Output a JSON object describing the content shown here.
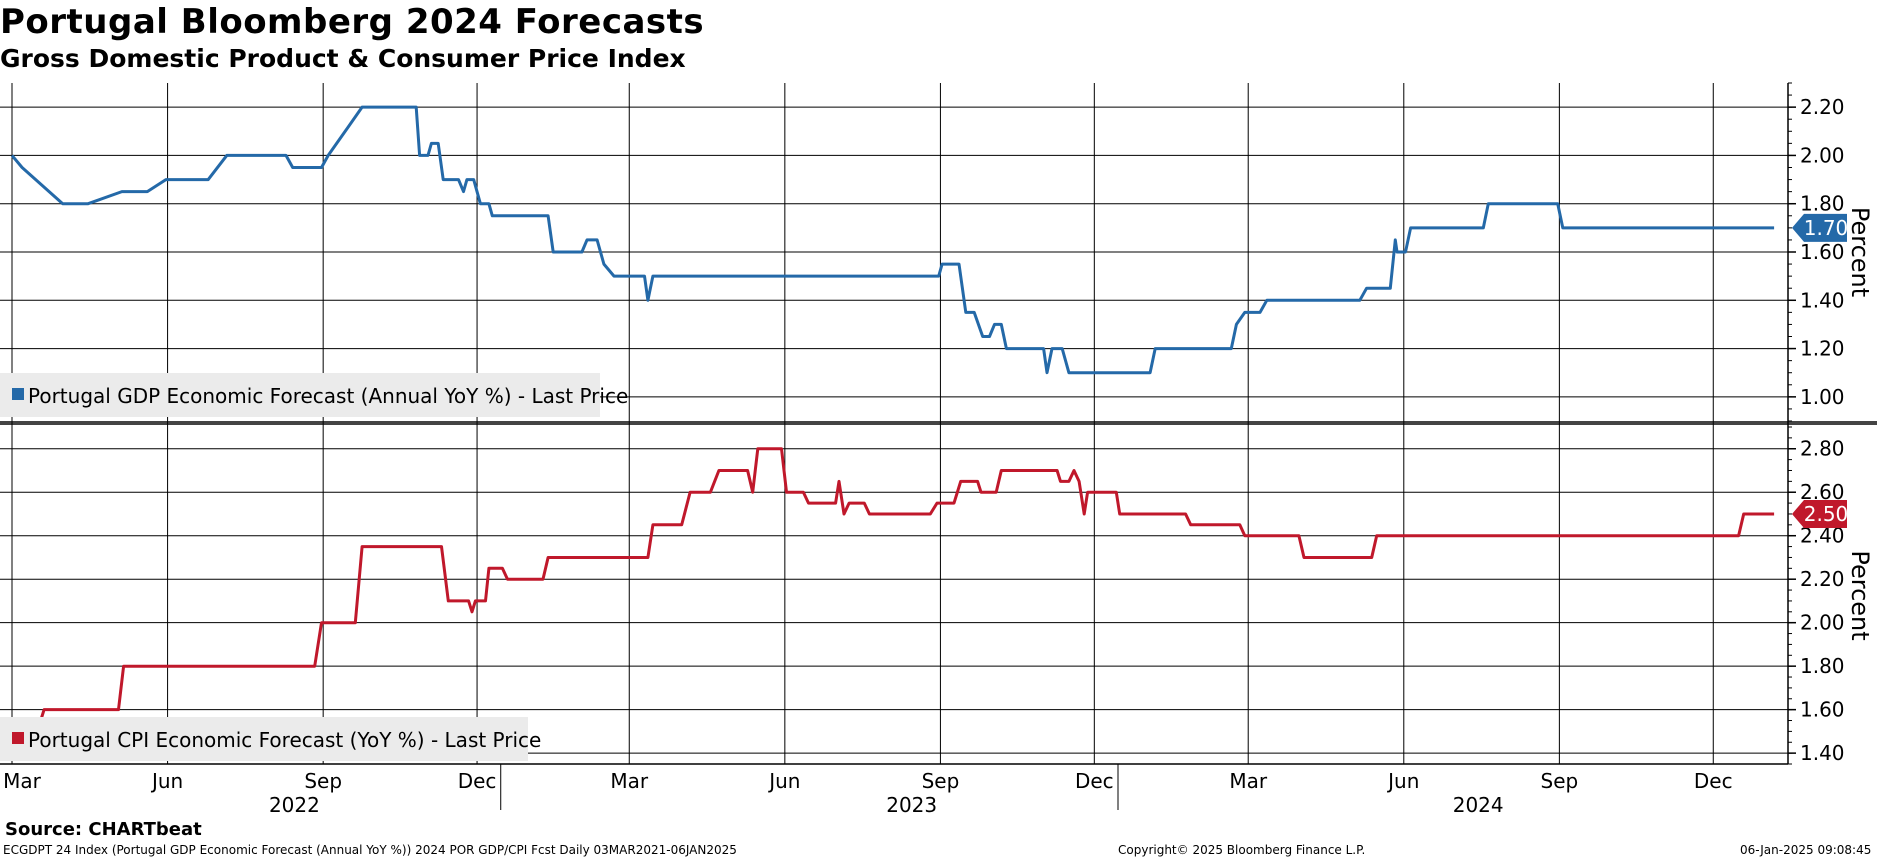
{
  "title": "Portugal Bloomberg 2024 Forecasts",
  "subtitle": "Gross Domestic Product & Consumer Price Index",
  "source": "Source: CHARTbeat",
  "footer": {
    "left": "ECGDPT 24 Index (Portugal GDP Economic Forecast (Annual YoY %)) 2024 POR GDP/CPI Fcst  Daily 03MAR2021-06JAN2025",
    "center": "Copyright© 2025 Bloomberg Finance L.P.",
    "right": "06-Jan-2025 09:08:45"
  },
  "colors": {
    "gdp": "#2469a8",
    "cpi": "#c0182b",
    "grid": "#000000",
    "legend_bg": "#ebebeb"
  },
  "chart_data": [
    {
      "type": "line",
      "name": "gdp-panel",
      "x_axis": {
        "month_labels": [
          "Mar",
          "Jun",
          "Sep",
          "Dec",
          "Mar",
          "Jun",
          "Sep",
          "Dec",
          "Mar",
          "Jun",
          "Sep",
          "Dec"
        ],
        "month_values": [
          "2022-03",
          "2022-06",
          "2022-09",
          "2022-12",
          "2023-03",
          "2023-06",
          "2023-09",
          "2023-12",
          "2024-03",
          "2024-06",
          "2024-09",
          "2024-12"
        ],
        "year_labels": [
          "2022",
          "2023",
          "2024"
        ],
        "range": [
          "2022-03-01",
          "2025-01-06"
        ]
      },
      "ylabel": "Percent",
      "ylim": [
        0.9,
        2.3
      ],
      "yticks": [
        "1.00",
        "1.20",
        "1.40",
        "1.60",
        "1.80",
        "2.00",
        "2.20"
      ],
      "last_value": "1.70",
      "series": [
        {
          "name": "Portugal GDP Economic Forecast (Annual YoY %) - Last Price",
          "points": [
            [
              "2022-03-01",
              2.0
            ],
            [
              "2022-03-07",
              1.95
            ],
            [
              "2022-03-31",
              1.8
            ],
            [
              "2022-04-15",
              1.8
            ],
            [
              "2022-05-05",
              1.85
            ],
            [
              "2022-05-20",
              1.85
            ],
            [
              "2022-05-31",
              1.9
            ],
            [
              "2022-06-25",
              1.9
            ],
            [
              "2022-07-06",
              2.0
            ],
            [
              "2022-08-10",
              2.0
            ],
            [
              "2022-08-14",
              1.95
            ],
            [
              "2022-08-31",
              1.95
            ],
            [
              "2022-09-04",
              2.0
            ],
            [
              "2022-09-14",
              2.1
            ],
            [
              "2022-09-24",
              2.2
            ],
            [
              "2022-10-16",
              2.2
            ],
            [
              "2022-10-26",
              2.2
            ],
            [
              "2022-10-28",
              2.0
            ],
            [
              "2022-11-02",
              2.0
            ],
            [
              "2022-11-04",
              2.05
            ],
            [
              "2022-11-08",
              2.05
            ],
            [
              "2022-11-11",
              1.9
            ],
            [
              "2022-11-20",
              1.9
            ],
            [
              "2022-11-23",
              1.85
            ],
            [
              "2022-11-25",
              1.9
            ],
            [
              "2022-11-29",
              1.9
            ],
            [
              "2022-12-03",
              1.8
            ],
            [
              "2022-12-08",
              1.8
            ],
            [
              "2022-12-10",
              1.75
            ],
            [
              "2023-01-12",
              1.75
            ],
            [
              "2023-01-15",
              1.6
            ],
            [
              "2023-02-01",
              1.6
            ],
            [
              "2023-02-04",
              1.65
            ],
            [
              "2023-02-10",
              1.65
            ],
            [
              "2023-02-14",
              1.55
            ],
            [
              "2023-02-20",
              1.5
            ],
            [
              "2023-03-10",
              1.5
            ],
            [
              "2023-03-12",
              1.4
            ],
            [
              "2023-03-15",
              1.5
            ],
            [
              "2023-08-31",
              1.5
            ],
            [
              "2023-09-02",
              1.55
            ],
            [
              "2023-09-12",
              1.55
            ],
            [
              "2023-09-16",
              1.35
            ],
            [
              "2023-09-21",
              1.35
            ],
            [
              "2023-09-26",
              1.25
            ],
            [
              "2023-09-30",
              1.25
            ],
            [
              "2023-10-03",
              1.3
            ],
            [
              "2023-10-07",
              1.3
            ],
            [
              "2023-10-10",
              1.2
            ],
            [
              "2023-11-01",
              1.2
            ],
            [
              "2023-11-03",
              1.1
            ],
            [
              "2023-11-06",
              1.2
            ],
            [
              "2023-11-12",
              1.2
            ],
            [
              "2023-11-16",
              1.1
            ],
            [
              "2024-01-03",
              1.1
            ],
            [
              "2024-01-06",
              1.2
            ],
            [
              "2024-02-20",
              1.2
            ],
            [
              "2024-02-23",
              1.3
            ],
            [
              "2024-02-28",
              1.35
            ],
            [
              "2024-03-08",
              1.35
            ],
            [
              "2024-03-12",
              1.4
            ],
            [
              "2024-05-06",
              1.4
            ],
            [
              "2024-05-10",
              1.45
            ],
            [
              "2024-05-24",
              1.45
            ],
            [
              "2024-05-27",
              1.65
            ],
            [
              "2024-05-28",
              1.6
            ],
            [
              "2024-06-02",
              1.6
            ],
            [
              "2024-06-05",
              1.7
            ],
            [
              "2024-07-18",
              1.7
            ],
            [
              "2024-07-21",
              1.8
            ],
            [
              "2024-08-31",
              1.8
            ],
            [
              "2024-09-03",
              1.7
            ],
            [
              "2025-01-06",
              1.7
            ]
          ]
        }
      ]
    },
    {
      "type": "line",
      "name": "cpi-panel",
      "ylabel": "Percent",
      "ylim": [
        1.35,
        2.9
      ],
      "yticks": [
        "1.40",
        "1.60",
        "1.80",
        "2.00",
        "2.20",
        "2.40",
        "2.60",
        "2.80"
      ],
      "last_value": "2.50",
      "series": [
        {
          "name": "Portugal CPI Economic Forecast (YoY %) - Last Price",
          "points": [
            [
              "2022-03-01",
              1.55
            ],
            [
              "2022-03-18",
              1.55
            ],
            [
              "2022-03-20",
              1.6
            ],
            [
              "2022-05-03",
              1.6
            ],
            [
              "2022-05-06",
              1.8
            ],
            [
              "2022-08-27",
              1.8
            ],
            [
              "2022-08-31",
              2.0
            ],
            [
              "2022-09-20",
              2.0
            ],
            [
              "2022-09-24",
              2.35
            ],
            [
              "2022-11-10",
              2.35
            ],
            [
              "2022-11-14",
              2.1
            ],
            [
              "2022-11-26",
              2.1
            ],
            [
              "2022-11-28",
              2.05
            ],
            [
              "2022-11-30",
              2.1
            ],
            [
              "2022-12-06",
              2.1
            ],
            [
              "2022-12-08",
              2.25
            ],
            [
              "2022-12-16",
              2.25
            ],
            [
              "2022-12-19",
              2.2
            ],
            [
              "2023-01-09",
              2.2
            ],
            [
              "2023-01-12",
              2.3
            ],
            [
              "2023-03-12",
              2.3
            ],
            [
              "2023-03-15",
              2.45
            ],
            [
              "2023-04-01",
              2.45
            ],
            [
              "2023-04-06",
              2.6
            ],
            [
              "2023-04-18",
              2.6
            ],
            [
              "2023-04-23",
              2.7
            ],
            [
              "2023-05-10",
              2.7
            ],
            [
              "2023-05-13",
              2.6
            ],
            [
              "2023-05-16",
              2.8
            ],
            [
              "2023-05-30",
              2.8
            ],
            [
              "2023-06-02",
              2.6
            ],
            [
              "2023-06-12",
              2.6
            ],
            [
              "2023-06-15",
              2.55
            ],
            [
              "2023-07-01",
              2.55
            ],
            [
              "2023-07-03",
              2.65
            ],
            [
              "2023-07-06",
              2.5
            ],
            [
              "2023-07-09",
              2.55
            ],
            [
              "2023-07-18",
              2.55
            ],
            [
              "2023-07-21",
              2.5
            ],
            [
              "2023-08-26",
              2.5
            ],
            [
              "2023-08-30",
              2.55
            ],
            [
              "2023-09-09",
              2.55
            ],
            [
              "2023-09-13",
              2.65
            ],
            [
              "2023-09-23",
              2.65
            ],
            [
              "2023-09-25",
              2.6
            ],
            [
              "2023-10-04",
              2.6
            ],
            [
              "2023-10-07",
              2.7
            ],
            [
              "2023-11-09",
              2.7
            ],
            [
              "2023-11-11",
              2.65
            ],
            [
              "2023-11-16",
              2.65
            ],
            [
              "2023-11-19",
              2.7
            ],
            [
              "2023-11-22",
              2.65
            ],
            [
              "2023-11-25",
              2.5
            ],
            [
              "2023-11-27",
              2.6
            ],
            [
              "2023-12-14",
              2.6
            ],
            [
              "2023-12-16",
              2.5
            ],
            [
              "2024-01-24",
              2.5
            ],
            [
              "2024-01-27",
              2.45
            ],
            [
              "2024-02-25",
              2.45
            ],
            [
              "2024-02-28",
              2.4
            ],
            [
              "2024-03-31",
              2.4
            ],
            [
              "2024-04-03",
              2.3
            ],
            [
              "2024-05-13",
              2.3
            ],
            [
              "2024-05-16",
              2.4
            ],
            [
              "2024-12-16",
              2.4
            ],
            [
              "2024-12-19",
              2.5
            ],
            [
              "2025-01-06",
              2.5
            ]
          ]
        }
      ]
    }
  ]
}
